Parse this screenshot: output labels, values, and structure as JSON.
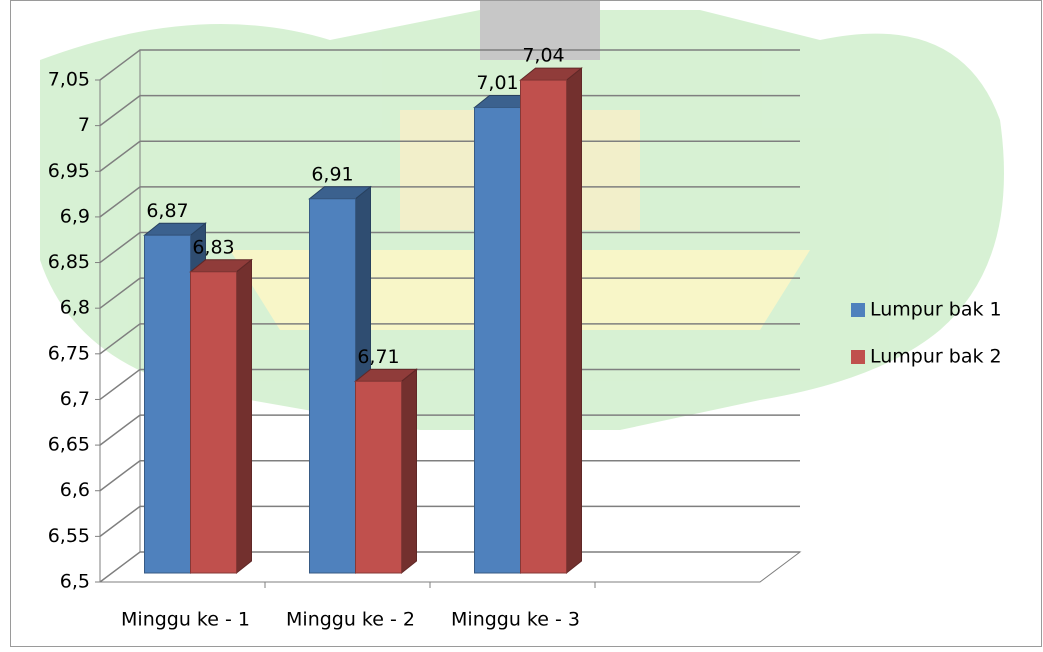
{
  "chart_data": {
    "type": "bar3d",
    "categories": [
      "Minggu ke - 1",
      "Minggu ke - 2",
      "Minggu ke - 3"
    ],
    "series": [
      {
        "name": "Lumpur bak 1",
        "color": "#4f81bd",
        "values": [
          6.87,
          6.91,
          7.01
        ],
        "value_labels": [
          "6,87",
          "6,91",
          "7,01"
        ]
      },
      {
        "name": "Lumpur bak 2",
        "color": "#c0504d",
        "values": [
          6.83,
          6.71,
          7.04
        ],
        "value_labels": [
          "6,83",
          "6,71",
          "7,04"
        ]
      }
    ],
    "ylim": [
      6.5,
      7.05
    ],
    "yticks": [
      {
        "value": 6.5,
        "label": "6,5"
      },
      {
        "value": 6.55,
        "label": "6,55"
      },
      {
        "value": 6.6,
        "label": "6,6"
      },
      {
        "value": 6.65,
        "label": "6,65"
      },
      {
        "value": 6.7,
        "label": "6,7"
      },
      {
        "value": 6.75,
        "label": "6,75"
      },
      {
        "value": 6.8,
        "label": "6,8"
      },
      {
        "value": 6.85,
        "label": "6,85"
      },
      {
        "value": 6.9,
        "label": "6,9"
      },
      {
        "value": 6.95,
        "label": "6,95"
      },
      {
        "value": 7,
        "label": "7"
      },
      {
        "value": 7.05,
        "label": "7,05"
      }
    ],
    "grid": true,
    "legend": "right"
  }
}
